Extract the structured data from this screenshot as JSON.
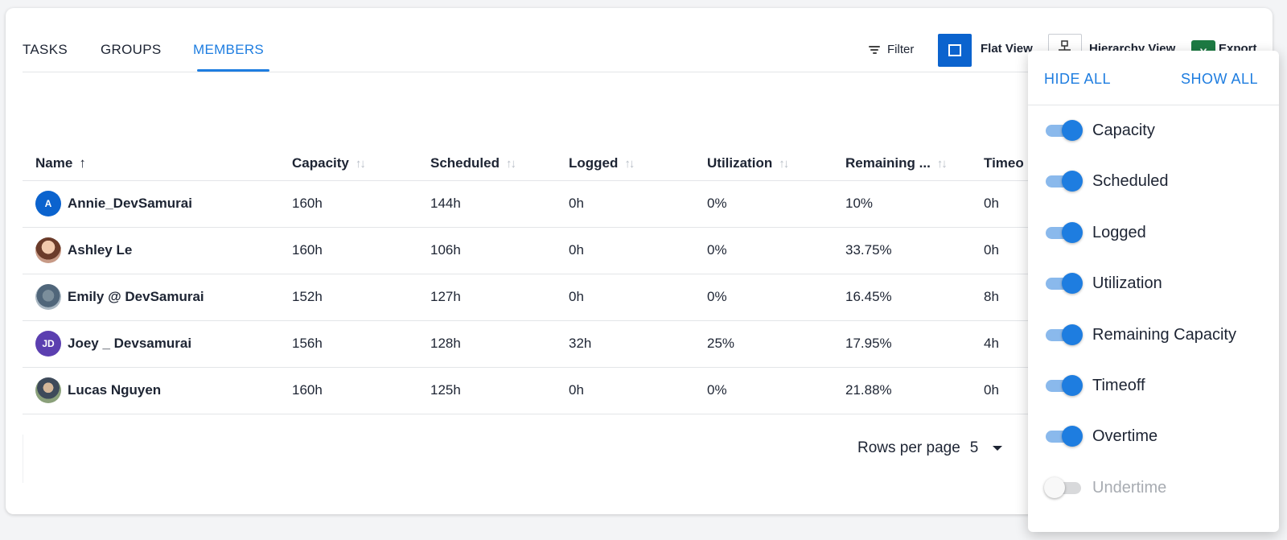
{
  "tabs": [
    {
      "label": "TASKS",
      "active": false
    },
    {
      "label": "GROUPS",
      "active": false
    },
    {
      "label": "MEMBERS",
      "active": true
    }
  ],
  "toolbar": {
    "filter_label": "Filter",
    "flat_view_label": "Flat View",
    "hierarchy_view_label": "Hierarchy View",
    "export_label": "Export",
    "export_icon_text": "X"
  },
  "table": {
    "headers": [
      "Name",
      "Capacity",
      "Scheduled",
      "Logged",
      "Utilization",
      "Remaining ...",
      "Timeo"
    ],
    "rows": [
      {
        "avatar": "A",
        "avatar_color": "#0b63ce",
        "name": "Annie_DevSamurai",
        "capacity": "160h",
        "scheduled": "144h",
        "logged": "0h",
        "utilization": "0%",
        "remaining": "10%",
        "timeoff": "0h"
      },
      {
        "avatar": "",
        "name": "Ashley Le",
        "capacity": "160h",
        "scheduled": "106h",
        "logged": "0h",
        "utilization": "0%",
        "remaining": "33.75%",
        "timeoff": "0h"
      },
      {
        "avatar": "",
        "name": "Emily @ DevSamurai",
        "capacity": "152h",
        "scheduled": "127h",
        "logged": "0h",
        "utilization": "0%",
        "remaining": "16.45%",
        "timeoff": "8h"
      },
      {
        "avatar": "JD",
        "avatar_color": "#5b3fb0",
        "name": "Joey _ Devsamurai",
        "capacity": "156h",
        "scheduled": "128h",
        "logged": "32h",
        "utilization": "25%",
        "remaining": "17.95%",
        "timeoff": "4h"
      },
      {
        "avatar": "",
        "name": "Lucas Nguyen",
        "capacity": "160h",
        "scheduled": "125h",
        "logged": "0h",
        "utilization": "0%",
        "remaining": "21.88%",
        "timeoff": "0h"
      }
    ]
  },
  "pagination": {
    "rows_per_page_label": "Rows per page",
    "rows_per_page_value": "5"
  },
  "column_menu": {
    "hide_all": "HIDE ALL",
    "show_all": "SHOW ALL",
    "items": [
      {
        "label": "Capacity",
        "on": true
      },
      {
        "label": "Scheduled",
        "on": true
      },
      {
        "label": "Logged",
        "on": true
      },
      {
        "label": "Utilization",
        "on": true
      },
      {
        "label": "Remaining Capacity",
        "on": true
      },
      {
        "label": "Timeoff",
        "on": true
      },
      {
        "label": "Overtime",
        "on": true
      },
      {
        "label": "Undertime",
        "on": false
      }
    ]
  },
  "colors": {
    "accent": "#1e7de0",
    "flat_view_active": "#0b63ce",
    "excel_green": "#1d7a43"
  }
}
